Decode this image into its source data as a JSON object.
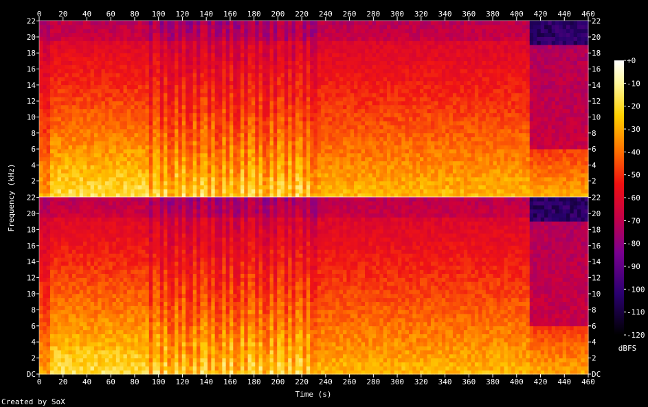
{
  "footer": "Created by SoX",
  "chart_data": {
    "type": "heatmap",
    "title": "",
    "xlabel": "Time (s)",
    "ylabel": "Frequency (kHz)",
    "xlim": [
      0,
      460
    ],
    "ylim_khz": [
      0,
      22.05
    ],
    "x_ticks": [
      "0",
      "20",
      "40",
      "60",
      "80",
      "100",
      "120",
      "140",
      "160",
      "180",
      "200",
      "220",
      "240",
      "260",
      "280",
      "300",
      "320",
      "340",
      "360",
      "380",
      "400",
      "420",
      "440",
      "460"
    ],
    "y_ticks_top": [
      "2",
      "4",
      "6",
      "8",
      "10",
      "12",
      "14",
      "16",
      "18",
      "20",
      "22"
    ],
    "y_ticks_bottom": [
      "DC",
      "2",
      "4",
      "6",
      "8",
      "10",
      "12",
      "14",
      "16",
      "18",
      "20",
      "22"
    ],
    "channels": [
      "left",
      "right"
    ],
    "colorbar": {
      "label": "dBFS",
      "range": [
        -120,
        0
      ],
      "ticks": [
        "+0",
        "-10",
        "-20",
        "-30",
        "-40",
        "-50",
        "-60",
        "-70",
        "-80",
        "-90",
        "-100",
        "-110",
        "-120"
      ]
    },
    "sections": [
      {
        "start": 0,
        "end": 10,
        "level": "mixed",
        "cutoff_khz": 22
      },
      {
        "start": 10,
        "end": 65,
        "level": "high",
        "cutoff_khz": 22
      },
      {
        "start": 65,
        "end": 93,
        "level": "high",
        "cutoff_khz": 22
      },
      {
        "start": 93,
        "end": 232,
        "level": "pulsed",
        "cutoff_khz": 22
      },
      {
        "start": 232,
        "end": 412,
        "level": "medium",
        "cutoff_khz": 22
      },
      {
        "start": 412,
        "end": 460,
        "level": "low",
        "cutoff_khz": 19
      }
    ]
  }
}
